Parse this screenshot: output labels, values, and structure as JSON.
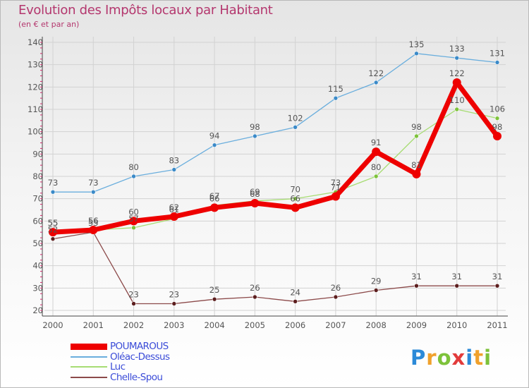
{
  "header": {
    "title": "Evolution des Impôts locaux par Habitant",
    "subtitle": "(en € et par an)"
  },
  "logo": {
    "text": "Proxiti",
    "colors": [
      "#2c8ad8",
      "#f0a12c",
      "#7dc23a",
      "#e23b3b",
      "#2c8ad8",
      "#f0a12c",
      "#7dc23a"
    ]
  },
  "chart_data": {
    "type": "line",
    "title": "Evolution des Impôts locaux par Habitant",
    "subtitle": "(en € et par an)",
    "xlabel": "",
    "ylabel": "",
    "categories": [
      "2000",
      "2001",
      "2002",
      "2003",
      "2004",
      "2005",
      "2006",
      "2007",
      "2008",
      "2009",
      "2010",
      "2011"
    ],
    "ylim": [
      20,
      140
    ],
    "yticks": [
      20,
      30,
      40,
      50,
      60,
      70,
      80,
      90,
      100,
      110,
      120,
      130,
      140
    ],
    "grid": true,
    "legend_position": "bottom-left",
    "series": [
      {
        "name": "Oléac-Dessus",
        "color": "#6aaedd",
        "marker": "#3b8ac8",
        "width": 1.3,
        "markerSize": 3,
        "values": [
          73,
          73,
          80,
          83,
          94,
          98,
          102,
          115,
          122,
          135,
          133,
          131
        ]
      },
      {
        "name": "Luc",
        "color": "#a7dc73",
        "marker": "#7dc23a",
        "width": 1.3,
        "markerSize": 3,
        "values": [
          55,
          56,
          57,
          61,
          67,
          69,
          70,
          73,
          80,
          98,
          110,
          106
        ]
      },
      {
        "name": "Chelle-Spou",
        "color": "#8c4a4a",
        "marker": "#5c1e1e",
        "width": 1.3,
        "markerSize": 3,
        "values": [
          52,
          55,
          23,
          23,
          25,
          26,
          24,
          26,
          29,
          31,
          31,
          31
        ]
      },
      {
        "name": "POUMAROUS",
        "color": "#ee0000",
        "marker": "#ee0000",
        "width": 7,
        "markerSize": 6,
        "values": [
          55,
          56,
          60,
          62,
          66,
          68,
          66,
          71,
          91,
          81,
          122,
          98
        ]
      }
    ],
    "legend_order": [
      "POUMAROUS",
      "Oléac-Dessus",
      "Luc",
      "Chelle-Spou"
    ]
  }
}
